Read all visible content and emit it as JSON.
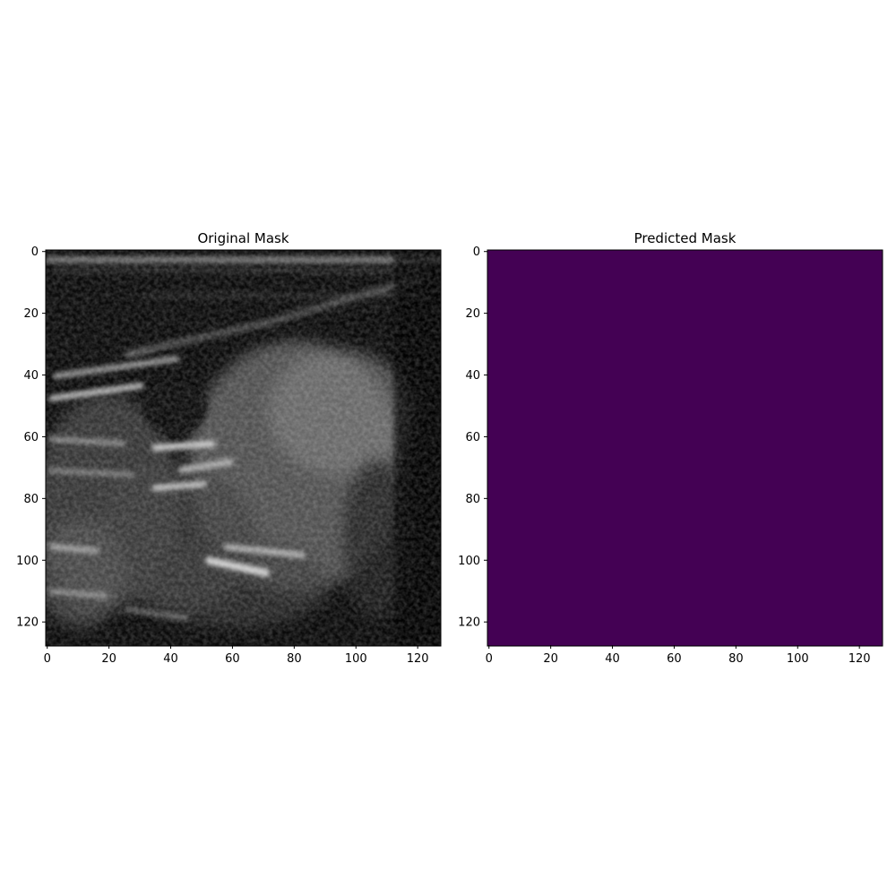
{
  "figure": {
    "panels": [
      {
        "title": "Original Mask",
        "kind": "grayscale-ultrasound-image",
        "x_ticks": [
          "0",
          "20",
          "40",
          "60",
          "80",
          "100",
          "120"
        ],
        "y_ticks": [
          "0",
          "20",
          "40",
          "60",
          "80",
          "100",
          "120"
        ],
        "extent": [
          0,
          128
        ]
      },
      {
        "title": "Predicted Mask",
        "kind": "uniform-fill",
        "fill_color": "#440154",
        "x_ticks": [
          "0",
          "20",
          "40",
          "60",
          "80",
          "100",
          "120"
        ],
        "y_ticks": [
          "0",
          "20",
          "40",
          "60",
          "80",
          "100",
          "120"
        ],
        "extent": [
          0,
          128
        ]
      }
    ]
  },
  "colors": {
    "background": "#ffffff",
    "predicted_fill": "#440154",
    "ultrasound_dark": "#0a0a0a"
  }
}
